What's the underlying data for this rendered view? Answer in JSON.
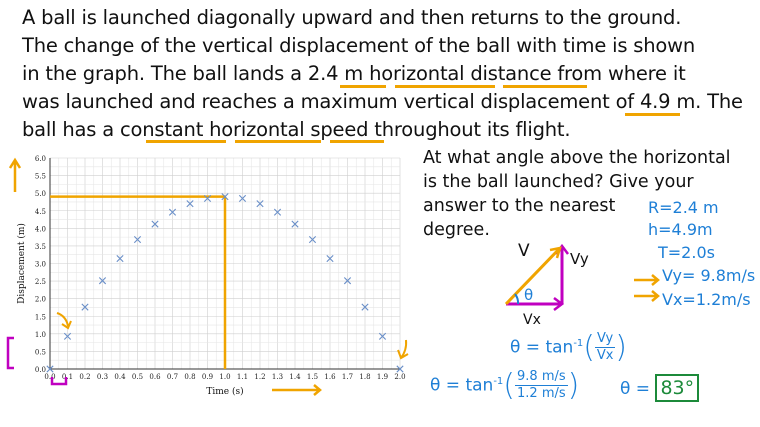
{
  "problem": {
    "lines": [
      "A ball is launched diagonally upward and then returns to the ground.",
      "The change of the vertical displacement of the ball with time is shown",
      "in the graph. The ball lands a 2.4 m horizontal distance from where it",
      "was launched and reaches a maximum vertical displacement of 4.9 m. The",
      "ball has a constant horizontal speed throughout its flight."
    ]
  },
  "question": {
    "lines": [
      "At what angle above the horizontal",
      "is the ball launched? Give your",
      "answer to the nearest",
      "degree."
    ]
  },
  "givens": {
    "R": "R=2.4 m",
    "h": "h=4.9m",
    "T": "T=2.0s",
    "vy": "Vy= 9.8m/s",
    "vx": "Vx=1.2m/s"
  },
  "triangle": {
    "hyp": "V",
    "vert": "Vy",
    "horiz": "Vx",
    "angle": "θ"
  },
  "equations": {
    "eq1_lhs": "θ = tan",
    "eq1_sup": "-1",
    "eq1_num": "Vy",
    "eq1_den": "Vx",
    "eq2_lhs": "θ = tan",
    "eq2_sup": "-1",
    "eq2_num": "9.8 m/s",
    "eq2_den": "1.2 m/s",
    "answer_lhs": "θ =",
    "answer": "83°"
  },
  "colors": {
    "accent": "#f0a400",
    "blue": "#1e7fd6",
    "purple": "#c000c0",
    "green": "#1c8a3a",
    "marker": "#6a8fc8"
  },
  "chart_data": {
    "type": "scatter",
    "xlabel": "Time (s)",
    "ylabel": "Displacement (m)",
    "xlim": [
      0,
      2.0
    ],
    "ylim": [
      0,
      6.0
    ],
    "xticks": [
      "0.0",
      "0.1",
      "0.2",
      "0.3",
      "0.4",
      "0.5",
      "0.6",
      "0.7",
      "0.8",
      "0.9",
      "1.0",
      "1.1",
      "1.2",
      "1.3",
      "1.4",
      "1.5",
      "1.6",
      "1.7",
      "1.8",
      "1.9",
      "2.0"
    ],
    "yticks": [
      "0.0",
      "0.5",
      "1.0",
      "1.5",
      "2.0",
      "2.5",
      "3.0",
      "3.5",
      "4.0",
      "4.5",
      "5.0",
      "5.5",
      "6.0"
    ],
    "grid": true,
    "x": [
      0.0,
      0.1,
      0.2,
      0.3,
      0.4,
      0.5,
      0.6,
      0.7,
      0.8,
      0.9,
      1.0,
      1.1,
      1.2,
      1.3,
      1.4,
      1.5,
      1.6,
      1.7,
      1.8,
      1.9,
      2.0
    ],
    "y": [
      0.0,
      0.93,
      1.76,
      2.51,
      3.14,
      3.68,
      4.12,
      4.46,
      4.7,
      4.85,
      4.9,
      4.85,
      4.7,
      4.46,
      4.12,
      3.68,
      3.14,
      2.51,
      1.76,
      0.93,
      0.0
    ],
    "highlight": {
      "x": 1.0,
      "y": 4.9
    }
  }
}
